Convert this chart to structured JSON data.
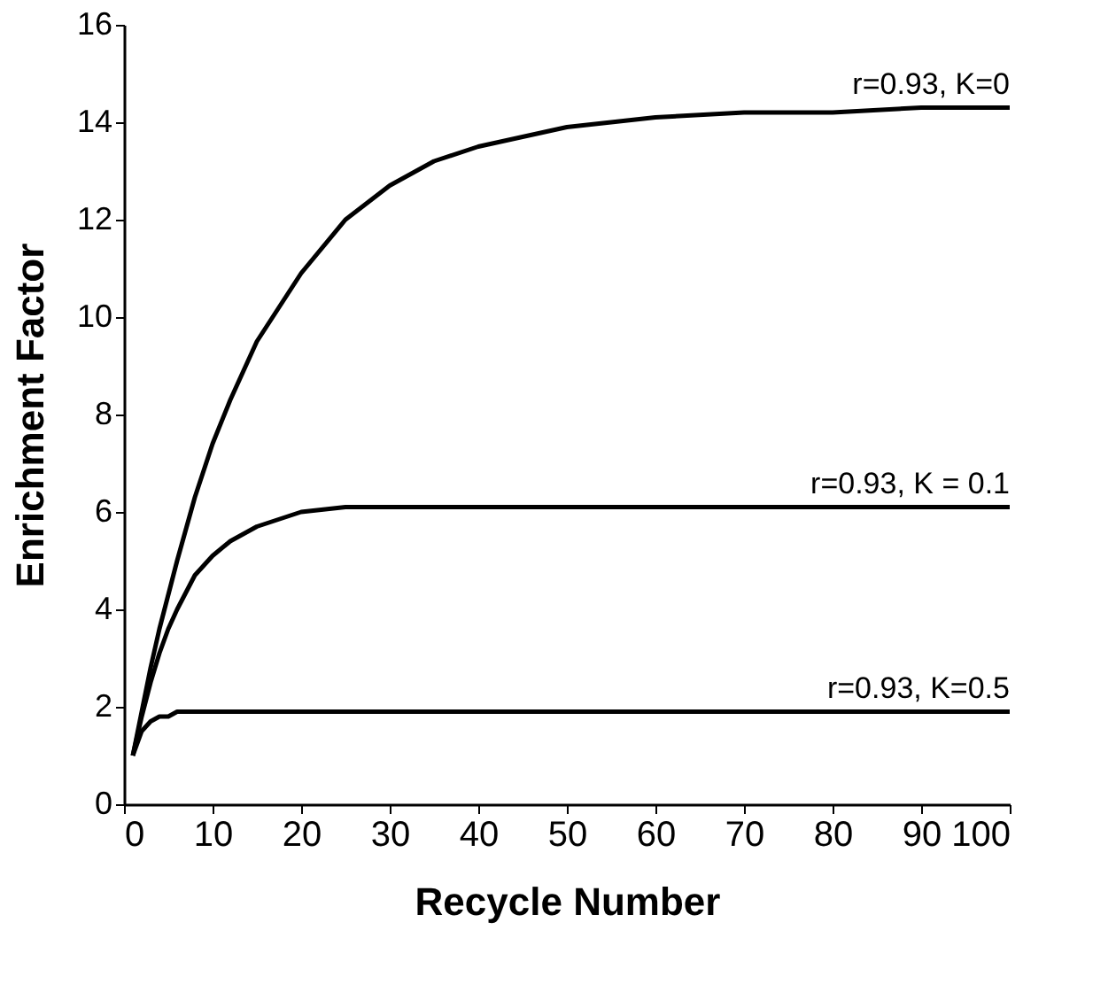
{
  "chart_data": {
    "type": "line",
    "xlabel": "Recycle Number",
    "ylabel": "Enrichment Factor",
    "xlim": [
      0,
      100
    ],
    "xticks": [
      0,
      10,
      20,
      30,
      40,
      50,
      60,
      70,
      80,
      90,
      100
    ],
    "ylim": [
      0,
      16
    ],
    "yticks": [
      0,
      2,
      4,
      6,
      8,
      10,
      12,
      14,
      16
    ],
    "grid": false,
    "legend": false,
    "marker": "none",
    "line_style": "solid",
    "x": [
      1,
      2,
      3,
      4,
      5,
      6,
      8,
      10,
      12,
      15,
      20,
      25,
      30,
      35,
      40,
      50,
      60,
      70,
      80,
      90,
      100
    ],
    "series": [
      {
        "name": "r=0.93, K=0",
        "color": "#000000",
        "values": [
          1.0,
          1.9,
          2.8,
          3.6,
          4.3,
          5.0,
          6.3,
          7.4,
          8.3,
          9.5,
          10.9,
          12.0,
          12.7,
          13.2,
          13.5,
          13.9,
          14.1,
          14.2,
          14.2,
          14.3,
          14.3
        ]
      },
      {
        "name": "r=0.93, K = 0.1",
        "color": "#000000",
        "values": [
          1.0,
          1.8,
          2.5,
          3.1,
          3.6,
          4.0,
          4.7,
          5.1,
          5.4,
          5.7,
          6.0,
          6.1,
          6.1,
          6.1,
          6.1,
          6.1,
          6.1,
          6.1,
          6.1,
          6.1,
          6.1
        ]
      },
      {
        "name": "r=0.93, K=0.5",
        "color": "#000000",
        "values": [
          1.0,
          1.5,
          1.7,
          1.8,
          1.8,
          1.9,
          1.9,
          1.9,
          1.9,
          1.9,
          1.9,
          1.9,
          1.9,
          1.9,
          1.9,
          1.9,
          1.9,
          1.9,
          1.9,
          1.9,
          1.9
        ]
      }
    ]
  }
}
